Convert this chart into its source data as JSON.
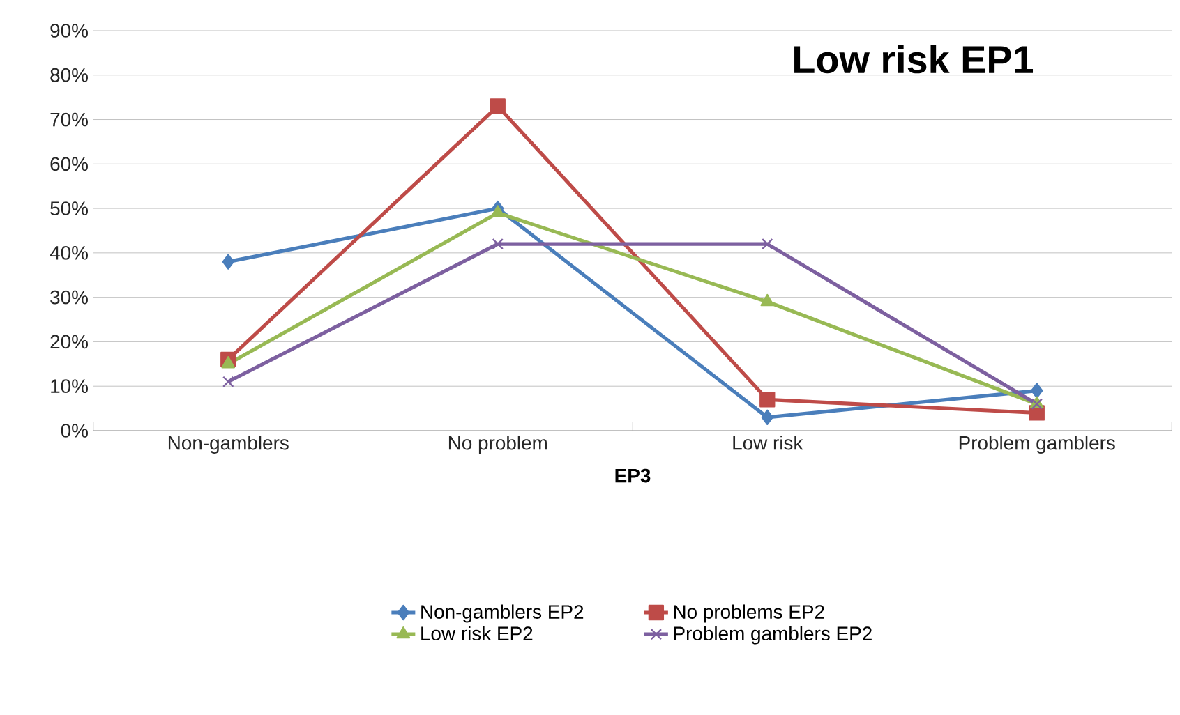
{
  "chart_data": {
    "type": "line",
    "title": "Low risk EP1",
    "xlabel": "EP3",
    "categories": [
      "Non-gamblers",
      "No problem",
      "Low risk",
      "Problem gamblers"
    ],
    "series": [
      {
        "name": "Non-gamblers EP2",
        "color": "#4a7ebb",
        "marker": "diamond",
        "values": [
          38,
          50,
          3,
          9
        ]
      },
      {
        "name": "No problems EP2",
        "color": "#be4b48",
        "marker": "square",
        "values": [
          16,
          73,
          7,
          4
        ]
      },
      {
        "name": "Low risk EP2",
        "color": "#98b954",
        "marker": "triangle",
        "values": [
          15,
          49,
          29,
          6
        ]
      },
      {
        "name": "Problem gamblers EP2",
        "color": "#7d60a0",
        "marker": "cross",
        "values": [
          11,
          42,
          42,
          6
        ]
      }
    ],
    "ylim": [
      0,
      90
    ],
    "yticks": [
      {
        "value": 0,
        "label": "0%"
      },
      {
        "value": 10,
        "label": "10%"
      },
      {
        "value": 20,
        "label": "20%"
      },
      {
        "value": 30,
        "label": "30%"
      },
      {
        "value": 40,
        "label": "40%"
      },
      {
        "value": 50,
        "label": "50%"
      },
      {
        "value": 60,
        "label": "60%"
      },
      {
        "value": 70,
        "label": "70%"
      },
      {
        "value": 80,
        "label": "80%"
      },
      {
        "value": 90,
        "label": "90%"
      }
    ],
    "grid": "y",
    "legend": "bottom",
    "line_style": "solid"
  }
}
